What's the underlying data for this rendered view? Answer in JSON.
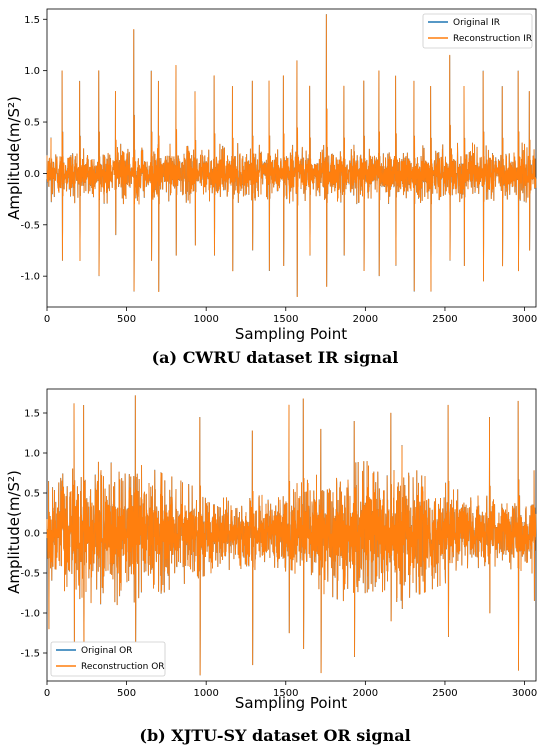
{
  "chart_data": [
    {
      "type": "line",
      "xlabel": "Sampling Point",
      "ylabel": "Amplitude(m/S²)",
      "xlim": [
        0,
        3072
      ],
      "ylim": [
        -1.3,
        1.6
      ],
      "x_ticks": [
        0,
        500,
        1000,
        1500,
        2000,
        2500,
        3000
      ],
      "y_ticks": [
        -1.0,
        -0.5,
        0.0,
        0.5,
        1.0,
        1.5
      ],
      "legend_position": "top-right",
      "series": [
        {
          "name": "Original IR",
          "color": "#1f77b4"
        },
        {
          "name": "Reconstruction IR",
          "color": "#ff7f0e"
        }
      ],
      "n_points": 3072,
      "base_amplitude": 0.3,
      "impulse_period": 105,
      "impulses": [
        [
          25,
          0.35,
          -0.28
        ],
        [
          95,
          1.0,
          -0.85
        ],
        [
          205,
          0.9,
          -0.85
        ],
        [
          325,
          1.0,
          -1.0
        ],
        [
          430,
          0.8,
          -0.6
        ],
        [
          545,
          1.4,
          -1.15
        ],
        [
          655,
          1.0,
          -0.85
        ],
        [
          700,
          0.9,
          -1.15
        ],
        [
          810,
          1.05,
          -0.8
        ],
        [
          930,
          0.8,
          -0.7
        ],
        [
          1050,
          0.95,
          -0.8
        ],
        [
          1165,
          0.85,
          -0.95
        ],
        [
          1290,
          0.9,
          -0.75
        ],
        [
          1395,
          0.9,
          -0.95
        ],
        [
          1485,
          0.95,
          -0.9
        ],
        [
          1570,
          1.1,
          -1.2
        ],
        [
          1650,
          0.85,
          -0.8
        ],
        [
          1755,
          1.55,
          -1.1
        ],
        [
          1865,
          0.85,
          -0.8
        ],
        [
          1990,
          0.9,
          -0.95
        ],
        [
          2085,
          1.0,
          -1.0
        ],
        [
          2190,
          0.95,
          -0.9
        ],
        [
          2305,
          0.9,
          -1.15
        ],
        [
          2410,
          0.85,
          -1.15
        ],
        [
          2530,
          1.15,
          -0.85
        ],
        [
          2620,
          0.85,
          -0.9
        ],
        [
          2740,
          1.0,
          -1.05
        ],
        [
          2860,
          0.85,
          -0.9
        ],
        [
          2960,
          1.0,
          -0.95
        ],
        [
          3030,
          0.8,
          -0.75
        ]
      ]
    },
    {
      "type": "line",
      "xlabel": "Sampling Point",
      "ylabel": "Amplitude(m/S²)",
      "xlim": [
        0,
        3072
      ],
      "ylim": [
        -1.85,
        1.8
      ],
      "x_ticks": [
        0,
        500,
        1000,
        1500,
        2000,
        2500,
        3000
      ],
      "y_ticks": [
        -1.5,
        -1.0,
        -0.5,
        0.0,
        0.5,
        1.0,
        1.5
      ],
      "legend_position": "bottom-left",
      "series": [
        {
          "name": "Original OR",
          "color": "#1f77b4"
        },
        {
          "name": "Reconstruction OR",
          "color": "#ff7f0e"
        }
      ],
      "n_points": 3072,
      "base_amplitude": 0.9,
      "impulses": [
        [
          10,
          0.65,
          -1.2
        ],
        [
          170,
          1.62,
          -1.4
        ],
        [
          230,
          1.6,
          -1.55
        ],
        [
          555,
          1.72,
          -1.4
        ],
        [
          960,
          1.45,
          -1.78
        ],
        [
          1290,
          1.28,
          -1.65
        ],
        [
          1520,
          1.6,
          -1.25
        ],
        [
          1610,
          1.68,
          -1.45
        ],
        [
          1720,
          1.3,
          -1.75
        ],
        [
          1930,
          1.4,
          -1.55
        ],
        [
          2160,
          1.5,
          -1.1
        ],
        [
          2230,
          1.1,
          -0.95
        ],
        [
          2520,
          1.6,
          -1.3
        ],
        [
          2780,
          1.45,
          -1.0
        ],
        [
          2960,
          1.65,
          -1.72
        ],
        [
          3060,
          0.78,
          -0.85
        ]
      ]
    }
  ],
  "captions": {
    "a": {
      "tag": "a",
      "text": " CWRU dataset IR signal"
    },
    "b": {
      "tag": "b",
      "text": " XJTU-SY dataset OR signal"
    }
  }
}
